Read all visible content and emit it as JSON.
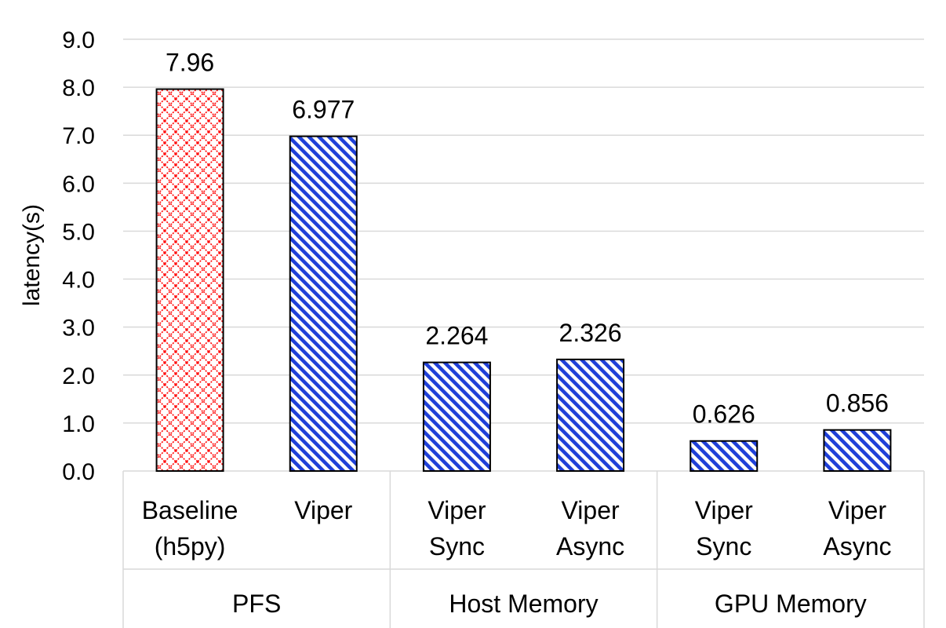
{
  "chart_data": {
    "type": "bar",
    "title": "",
    "xlabel": "",
    "ylabel": "latency(s)",
    "ylim": [
      0,
      9
    ],
    "ytick_step": 1,
    "yticks": [
      "0.0",
      "1.0",
      "2.0",
      "3.0",
      "4.0",
      "5.0",
      "6.0",
      "7.0",
      "8.0",
      "9.0"
    ],
    "grid": true,
    "legend": "none",
    "categories": [
      {
        "lines": [
          "Baseline",
          "(h5py)"
        ],
        "group": "PFS",
        "value": 7.96,
        "label": "7.96",
        "pattern": "red-crosshatch"
      },
      {
        "lines": [
          "Viper"
        ],
        "group": "PFS",
        "value": 6.977,
        "label": "6.977",
        "pattern": "blue-diagonal"
      },
      {
        "lines": [
          "Viper",
          "Sync"
        ],
        "group": "Host Memory",
        "value": 2.264,
        "label": "2.264",
        "pattern": "blue-diagonal"
      },
      {
        "lines": [
          "Viper",
          "Async"
        ],
        "group": "Host Memory",
        "value": 2.326,
        "label": "2.326",
        "pattern": "blue-diagonal"
      },
      {
        "lines": [
          "Viper",
          "Sync"
        ],
        "group": "GPU Memory",
        "value": 0.626,
        "label": "0.626",
        "pattern": "blue-diagonal"
      },
      {
        "lines": [
          "Viper",
          "Async"
        ],
        "group": "GPU Memory",
        "value": 0.856,
        "label": "0.856",
        "pattern": "blue-diagonal"
      }
    ],
    "groups": [
      "PFS",
      "Host Memory",
      "GPU Memory"
    ],
    "colors": {
      "baseline": "#ff0000",
      "viper": "#1f3fd8"
    }
  }
}
